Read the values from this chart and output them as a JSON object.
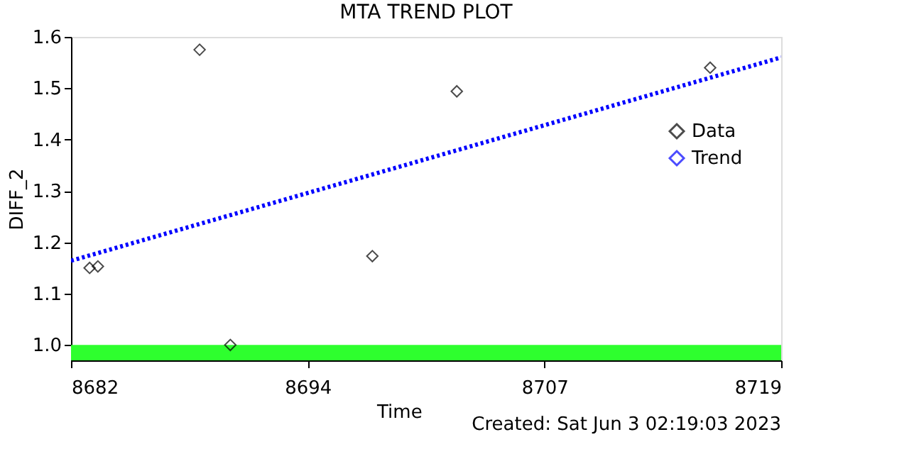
{
  "chart_data": {
    "type": "scatter",
    "title": "MTA TREND PLOT",
    "xlabel": "Time",
    "ylabel": "DIFF_2",
    "annotations": [
      "Created: Sat Jun  3 02:19:03 2023"
    ],
    "series": [
      {
        "name": "Data",
        "color": "#000000",
        "marker": "diamond",
        "x": [
          8682.97,
          8683.4,
          8688.7,
          8690.3,
          8697.7,
          8702.1,
          8715.3
        ],
        "values": [
          1.15,
          1.153,
          1.575,
          1.0,
          1.173,
          1.494,
          1.54
        ]
      },
      {
        "name": "Trend",
        "type": "line",
        "color": "#0000ff",
        "line_style": "dotted",
        "x": [
          8682,
          8719
        ],
        "values": [
          1.164,
          1.56
        ]
      }
    ],
    "bands": [
      {
        "axis": "y",
        "from": 0.97,
        "to": 1.0,
        "color": "#2eff2e"
      }
    ],
    "xlim": [
      8682,
      8719
    ],
    "xticks": [
      8682,
      {
        "value": 8694.33,
        "label": "8694"
      },
      {
        "value": 8706.67,
        "label": "8707"
      },
      8719
    ],
    "ylim": [
      0.97,
      1.6
    ],
    "yticks": [
      {
        "value": 1.0,
        "label": "1.0"
      },
      {
        "value": 1.1,
        "label": "1.1"
      },
      {
        "value": 1.2,
        "label": "1.2"
      },
      {
        "value": 1.3,
        "label": "1.3"
      },
      {
        "value": 1.4,
        "label": "1.4"
      },
      {
        "value": 1.5,
        "label": "1.5"
      },
      {
        "value": 1.6,
        "label": "1.6"
      }
    ],
    "grid": false,
    "legend": "top right"
  }
}
